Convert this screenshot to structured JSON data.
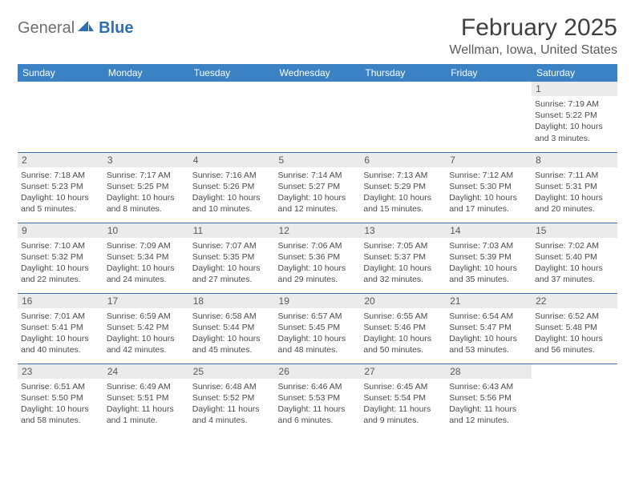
{
  "logo": {
    "part1": "General",
    "part2": "Blue"
  },
  "title": "February 2025",
  "location": "Wellman, Iowa, United States",
  "colors": {
    "header_bg": "#3a82c4",
    "header_text": "#ffffff",
    "cell_border": "#3a6fa3",
    "daynum_bg": "#ebebeb",
    "logo_gray": "#6f6f6f",
    "logo_blue": "#2f6fb0"
  },
  "day_headers": [
    "Sunday",
    "Monday",
    "Tuesday",
    "Wednesday",
    "Thursday",
    "Friday",
    "Saturday"
  ],
  "weeks": [
    [
      null,
      null,
      null,
      null,
      null,
      null,
      {
        "n": "1",
        "sunrise": "7:19 AM",
        "sunset": "5:22 PM",
        "daylight": "10 hours and 3 minutes."
      }
    ],
    [
      {
        "n": "2",
        "sunrise": "7:18 AM",
        "sunset": "5:23 PM",
        "daylight": "10 hours and 5 minutes."
      },
      {
        "n": "3",
        "sunrise": "7:17 AM",
        "sunset": "5:25 PM",
        "daylight": "10 hours and 8 minutes."
      },
      {
        "n": "4",
        "sunrise": "7:16 AM",
        "sunset": "5:26 PM",
        "daylight": "10 hours and 10 minutes."
      },
      {
        "n": "5",
        "sunrise": "7:14 AM",
        "sunset": "5:27 PM",
        "daylight": "10 hours and 12 minutes."
      },
      {
        "n": "6",
        "sunrise": "7:13 AM",
        "sunset": "5:29 PM",
        "daylight": "10 hours and 15 minutes."
      },
      {
        "n": "7",
        "sunrise": "7:12 AM",
        "sunset": "5:30 PM",
        "daylight": "10 hours and 17 minutes."
      },
      {
        "n": "8",
        "sunrise": "7:11 AM",
        "sunset": "5:31 PM",
        "daylight": "10 hours and 20 minutes."
      }
    ],
    [
      {
        "n": "9",
        "sunrise": "7:10 AM",
        "sunset": "5:32 PM",
        "daylight": "10 hours and 22 minutes."
      },
      {
        "n": "10",
        "sunrise": "7:09 AM",
        "sunset": "5:34 PM",
        "daylight": "10 hours and 24 minutes."
      },
      {
        "n": "11",
        "sunrise": "7:07 AM",
        "sunset": "5:35 PM",
        "daylight": "10 hours and 27 minutes."
      },
      {
        "n": "12",
        "sunrise": "7:06 AM",
        "sunset": "5:36 PM",
        "daylight": "10 hours and 29 minutes."
      },
      {
        "n": "13",
        "sunrise": "7:05 AM",
        "sunset": "5:37 PM",
        "daylight": "10 hours and 32 minutes."
      },
      {
        "n": "14",
        "sunrise": "7:03 AM",
        "sunset": "5:39 PM",
        "daylight": "10 hours and 35 minutes."
      },
      {
        "n": "15",
        "sunrise": "7:02 AM",
        "sunset": "5:40 PM",
        "daylight": "10 hours and 37 minutes."
      }
    ],
    [
      {
        "n": "16",
        "sunrise": "7:01 AM",
        "sunset": "5:41 PM",
        "daylight": "10 hours and 40 minutes."
      },
      {
        "n": "17",
        "sunrise": "6:59 AM",
        "sunset": "5:42 PM",
        "daylight": "10 hours and 42 minutes."
      },
      {
        "n": "18",
        "sunrise": "6:58 AM",
        "sunset": "5:44 PM",
        "daylight": "10 hours and 45 minutes."
      },
      {
        "n": "19",
        "sunrise": "6:57 AM",
        "sunset": "5:45 PM",
        "daylight": "10 hours and 48 minutes."
      },
      {
        "n": "20",
        "sunrise": "6:55 AM",
        "sunset": "5:46 PM",
        "daylight": "10 hours and 50 minutes."
      },
      {
        "n": "21",
        "sunrise": "6:54 AM",
        "sunset": "5:47 PM",
        "daylight": "10 hours and 53 minutes."
      },
      {
        "n": "22",
        "sunrise": "6:52 AM",
        "sunset": "5:48 PM",
        "daylight": "10 hours and 56 minutes."
      }
    ],
    [
      {
        "n": "23",
        "sunrise": "6:51 AM",
        "sunset": "5:50 PM",
        "daylight": "10 hours and 58 minutes."
      },
      {
        "n": "24",
        "sunrise": "6:49 AM",
        "sunset": "5:51 PM",
        "daylight": "11 hours and 1 minute."
      },
      {
        "n": "25",
        "sunrise": "6:48 AM",
        "sunset": "5:52 PM",
        "daylight": "11 hours and 4 minutes."
      },
      {
        "n": "26",
        "sunrise": "6:46 AM",
        "sunset": "5:53 PM",
        "daylight": "11 hours and 6 minutes."
      },
      {
        "n": "27",
        "sunrise": "6:45 AM",
        "sunset": "5:54 PM",
        "daylight": "11 hours and 9 minutes."
      },
      {
        "n": "28",
        "sunrise": "6:43 AM",
        "sunset": "5:56 PM",
        "daylight": "11 hours and 12 minutes."
      },
      null
    ]
  ],
  "labels": {
    "sunrise": "Sunrise:",
    "sunset": "Sunset:",
    "daylight": "Daylight:"
  }
}
